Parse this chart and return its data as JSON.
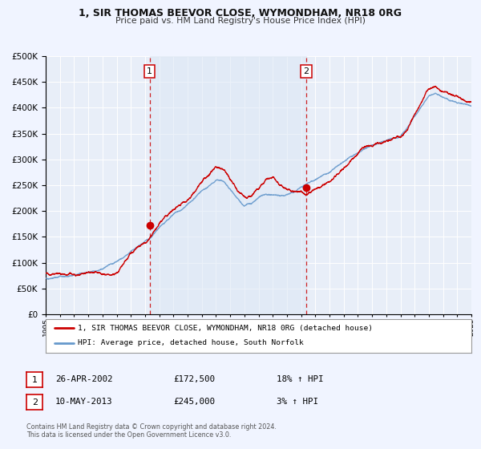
{
  "title": "1, SIR THOMAS BEEVOR CLOSE, WYMONDHAM, NR18 0RG",
  "subtitle": "Price paid vs. HM Land Registry's House Price Index (HPI)",
  "legend_line1": "1, SIR THOMAS BEEVOR CLOSE, WYMONDHAM, NR18 0RG (detached house)",
  "legend_line2": "HPI: Average price, detached house, South Norfolk",
  "sale1_date": "26-APR-2002",
  "sale1_price": "£172,500",
  "sale1_hpi": "18% ↑ HPI",
  "sale2_date": "10-MAY-2013",
  "sale2_price": "£245,000",
  "sale2_hpi": "3% ↑ HPI",
  "footer": "Contains HM Land Registry data © Crown copyright and database right 2024.\nThis data is licensed under the Open Government Licence v3.0.",
  "red_color": "#cc0000",
  "blue_color": "#6699cc",
  "fill_color": "#dce8f5",
  "background_color": "#f0f4ff",
  "plot_bg_color": "#e8eef8",
  "grid_color": "#ffffff",
  "sale1_year": 2002.32,
  "sale2_year": 2013.36,
  "sale1_price_val": 172500,
  "sale2_price_val": 245000,
  "ylim": [
    0,
    500000
  ],
  "xlim_start": 1995,
  "xlim_end": 2025
}
